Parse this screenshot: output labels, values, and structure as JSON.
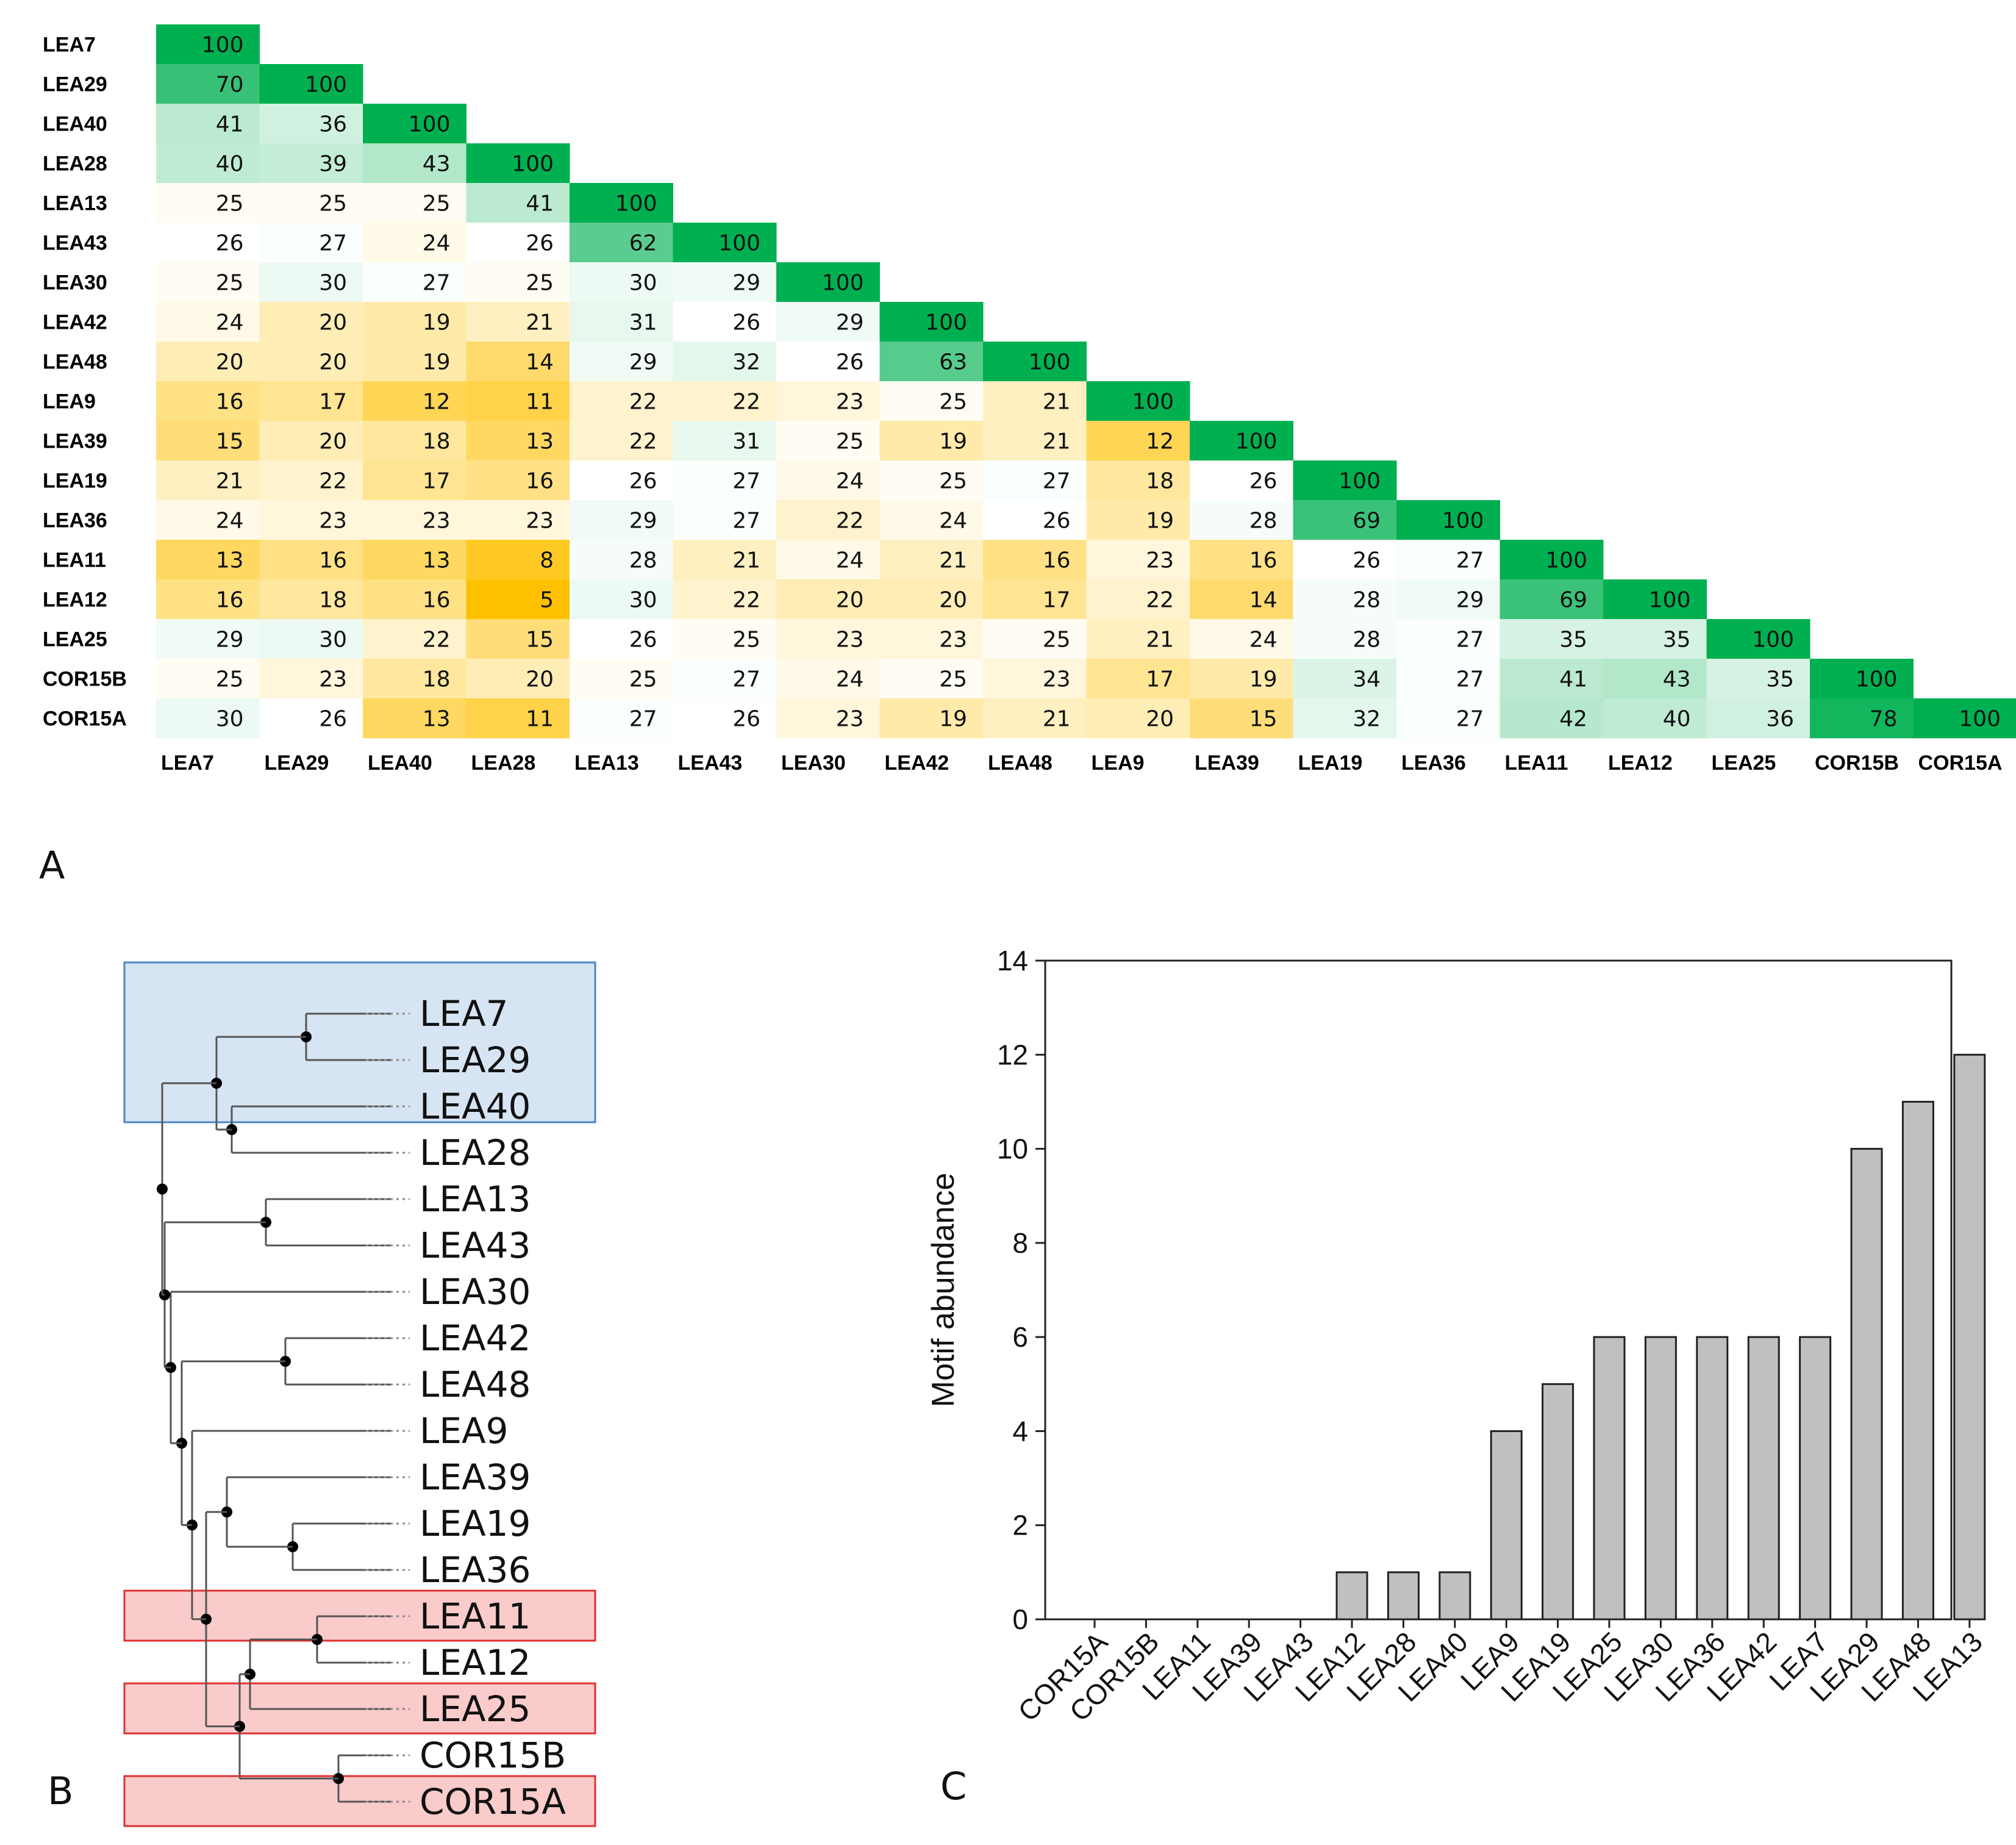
{
  "panel_labels": {
    "a": "A",
    "b": "B",
    "c": "C"
  },
  "chart_data": [
    {
      "type": "heatmap",
      "title": "",
      "labels": [
        "LEA7",
        "LEA29",
        "LEA40",
        "LEA28",
        "LEA13",
        "LEA43",
        "LEA30",
        "LEA42",
        "LEA48",
        "LEA9",
        "LEA39",
        "LEA19",
        "LEA36",
        "LEA11",
        "LEA12",
        "LEA25",
        "COR15B",
        "COR15A"
      ],
      "values": [
        [
          100
        ],
        [
          70,
          100
        ],
        [
          41,
          36,
          100
        ],
        [
          40,
          39,
          43,
          100
        ],
        [
          25,
          25,
          25,
          41,
          100
        ],
        [
          26,
          27,
          24,
          26,
          62,
          100
        ],
        [
          25,
          30,
          27,
          25,
          30,
          29,
          100
        ],
        [
          24,
          20,
          19,
          21,
          31,
          26,
          29,
          100
        ],
        [
          20,
          20,
          19,
          14,
          29,
          32,
          26,
          63,
          100
        ],
        [
          16,
          17,
          12,
          11,
          22,
          22,
          23,
          25,
          21,
          100
        ],
        [
          15,
          20,
          18,
          13,
          22,
          31,
          25,
          19,
          21,
          12,
          100
        ],
        [
          21,
          22,
          17,
          16,
          26,
          27,
          24,
          25,
          27,
          18,
          26,
          100
        ],
        [
          24,
          23,
          23,
          23,
          29,
          27,
          22,
          24,
          26,
          19,
          28,
          69,
          100
        ],
        [
          13,
          16,
          13,
          8,
          28,
          21,
          24,
          21,
          16,
          23,
          16,
          26,
          27,
          100
        ],
        [
          16,
          18,
          16,
          5,
          30,
          22,
          20,
          20,
          17,
          22,
          14,
          28,
          29,
          69,
          100
        ],
        [
          29,
          30,
          22,
          15,
          26,
          25,
          23,
          23,
          25,
          21,
          24,
          28,
          27,
          35,
          35,
          100
        ],
        [
          25,
          23,
          18,
          20,
          25,
          27,
          24,
          25,
          23,
          17,
          19,
          34,
          27,
          41,
          43,
          35,
          100
        ],
        [
          30,
          26,
          13,
          11,
          27,
          26,
          23,
          19,
          21,
          20,
          15,
          32,
          27,
          42,
          40,
          36,
          78,
          100
        ]
      ],
      "colors": {
        "low": "#ffc000",
        "mid": "#ffffff",
        "high": "#00b050"
      }
    },
    {
      "type": "tree",
      "leaves": [
        "LEA7",
        "LEA29",
        "LEA40",
        "LEA28",
        "LEA13",
        "LEA43",
        "LEA30",
        "LEA42",
        "LEA48",
        "LEA9",
        "LEA39",
        "LEA19",
        "LEA36",
        "LEA11",
        "LEA12",
        "LEA25",
        "COR15B",
        "COR15A"
      ],
      "highlight_groups": [
        {
          "leaves": [
            "LEA7",
            "LEA29",
            "LEA40"
          ],
          "color": "#4a86c8"
        },
        {
          "leaves": [
            "LEA11"
          ],
          "color": "#e03030"
        },
        {
          "leaves": [
            "LEA25"
          ],
          "color": "#e03030"
        },
        {
          "leaves": [
            "COR15A"
          ],
          "color": "#e03030"
        }
      ]
    },
    {
      "type": "bar",
      "categories": [
        "COR15A",
        "COR15B",
        "LEA11",
        "LEA39",
        "LEA43",
        "LEA12",
        "LEA28",
        "LEA40",
        "LEA9",
        "LEA19",
        "LEA25",
        "LEA30",
        "LEA36",
        "LEA42",
        "LEA7",
        "LEA29",
        "LEA48",
        "LEA13"
      ],
      "values": [
        0,
        0,
        0,
        0,
        0,
        1,
        1,
        1,
        4,
        5,
        6,
        6,
        6,
        6,
        6,
        10,
        11,
        12
      ],
      "ylabel": "Motif abundance",
      "xlabel": "",
      "ylim": [
        0,
        14
      ],
      "yticks": [
        "0",
        "2",
        "4",
        "6",
        "8",
        "10",
        "12",
        "14"
      ],
      "bar_color": "#c0c0c0"
    }
  ]
}
